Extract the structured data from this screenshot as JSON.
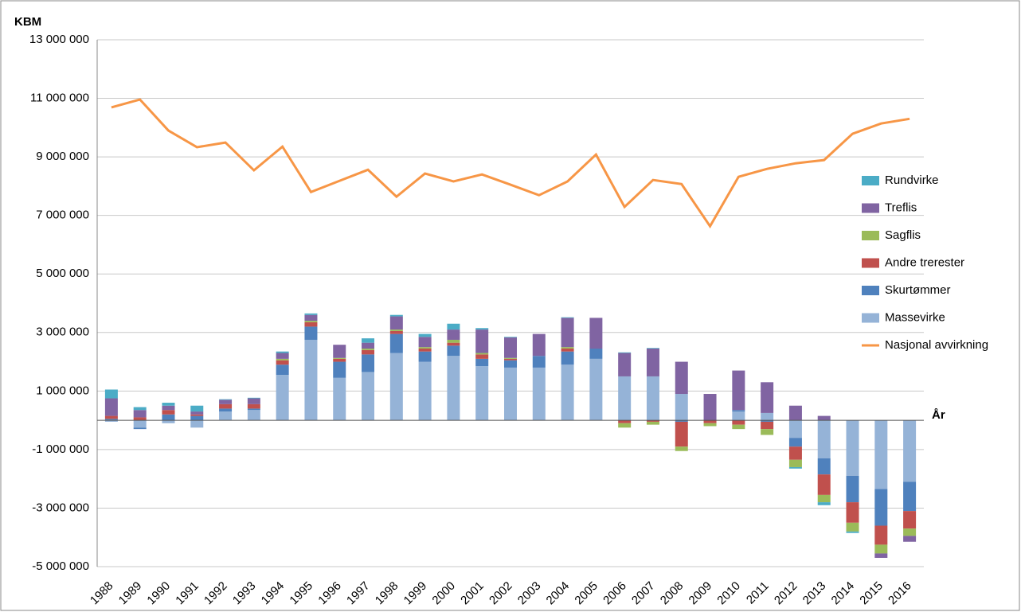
{
  "chart_data": {
    "type": "bar",
    "y_label": "KBM",
    "x_label": "År",
    "categories": [
      "1988",
      "1989",
      "1990",
      "1991",
      "1992",
      "1993",
      "1994",
      "1995",
      "1996",
      "1997",
      "1998",
      "1999",
      "2000",
      "2001",
      "2002",
      "2003",
      "2004",
      "2005",
      "2006",
      "2007",
      "2008",
      "2009",
      "2010",
      "2011",
      "2012",
      "2013",
      "2014",
      "2015",
      "2016"
    ],
    "series": [
      {
        "name": "Massevirke",
        "color": "#95b3d7",
        "values": [
          -50000,
          -250000,
          -100000,
          -250000,
          300000,
          350000,
          1550000,
          2750000,
          1450000,
          1650000,
          2300000,
          2000000,
          2200000,
          1850000,
          1800000,
          1800000,
          1900000,
          2100000,
          1500000,
          1500000,
          900000,
          0,
          300000,
          250000,
          -600000,
          -1300000,
          -1900000,
          -2350000,
          -2100000
        ]
      },
      {
        "name": "Skurtømmer",
        "color": "#4f81bd",
        "values": [
          50000,
          -50000,
          200000,
          150000,
          100000,
          50000,
          350000,
          450000,
          550000,
          600000,
          650000,
          350000,
          350000,
          250000,
          250000,
          400000,
          450000,
          350000,
          0,
          0,
          -50000,
          0,
          50000,
          -50000,
          -300000,
          -550000,
          -900000,
          -1250000,
          -1000000
        ]
      },
      {
        "name": "Andre trerester",
        "color": "#c0504d",
        "values": [
          100000,
          100000,
          150000,
          50000,
          150000,
          150000,
          150000,
          150000,
          100000,
          150000,
          100000,
          100000,
          100000,
          150000,
          50000,
          0,
          100000,
          0,
          -100000,
          -50000,
          -850000,
          -100000,
          -150000,
          -250000,
          -450000,
          -700000,
          -700000,
          -650000,
          -600000
        ]
      },
      {
        "name": "Sagflis",
        "color": "#9bbb59",
        "values": [
          0,
          0,
          0,
          0,
          0,
          0,
          50000,
          50000,
          30000,
          50000,
          50000,
          50000,
          100000,
          50000,
          30000,
          0,
          50000,
          0,
          -150000,
          -100000,
          -150000,
          -100000,
          -150000,
          -200000,
          -250000,
          -250000,
          -300000,
          -300000,
          -250000
        ]
      },
      {
        "name": "Treflis",
        "color": "#8064a2",
        "values": [
          600000,
          250000,
          150000,
          100000,
          150000,
          200000,
          200000,
          200000,
          450000,
          200000,
          450000,
          350000,
          350000,
          800000,
          700000,
          750000,
          1000000,
          1050000,
          800000,
          950000,
          1100000,
          900000,
          1350000,
          1050000,
          500000,
          150000,
          0,
          -150000,
          -200000
        ]
      },
      {
        "name": "Rundvirke",
        "color": "#4bacc6",
        "values": [
          300000,
          100000,
          100000,
          200000,
          20000,
          20000,
          50000,
          50000,
          0,
          150000,
          50000,
          100000,
          200000,
          50000,
          20000,
          0,
          20000,
          0,
          20000,
          20000,
          0,
          0,
          0,
          0,
          -50000,
          -100000,
          -50000,
          0,
          0
        ]
      }
    ],
    "line": {
      "name": "Nasjonal avvirkning",
      "color": "#f79646",
      "values": [
        10690000,
        10960000,
        9900000,
        9330000,
        9490000,
        8540000,
        9350000,
        7800000,
        8180000,
        8560000,
        7640000,
        8430000,
        8160000,
        8400000,
        8050000,
        7690000,
        8160000,
        9080000,
        7290000,
        8210000,
        8070000,
        6630000,
        8320000,
        8590000,
        8780000,
        8890000,
        9790000,
        10140000,
        10300000
      ]
    },
    "ylim": [
      -5000000,
      13000000
    ],
    "yticks": [
      {
        "value": -5000000,
        "label": "-5 000 000"
      },
      {
        "value": -3000000,
        "label": "-3 000 000"
      },
      {
        "value": -1000000,
        "label": "-1 000 000"
      },
      {
        "value": 1000000,
        "label": "1 000 000"
      },
      {
        "value": 3000000,
        "label": "3 000 000"
      },
      {
        "value": 5000000,
        "label": "5 000 000"
      },
      {
        "value": 7000000,
        "label": "7 000 000"
      },
      {
        "value": 9000000,
        "label": "9 000 000"
      },
      {
        "value": 11000000,
        "label": "11 000 000"
      },
      {
        "value": 13000000,
        "label": "13 000 000"
      }
    ],
    "grid": true
  }
}
